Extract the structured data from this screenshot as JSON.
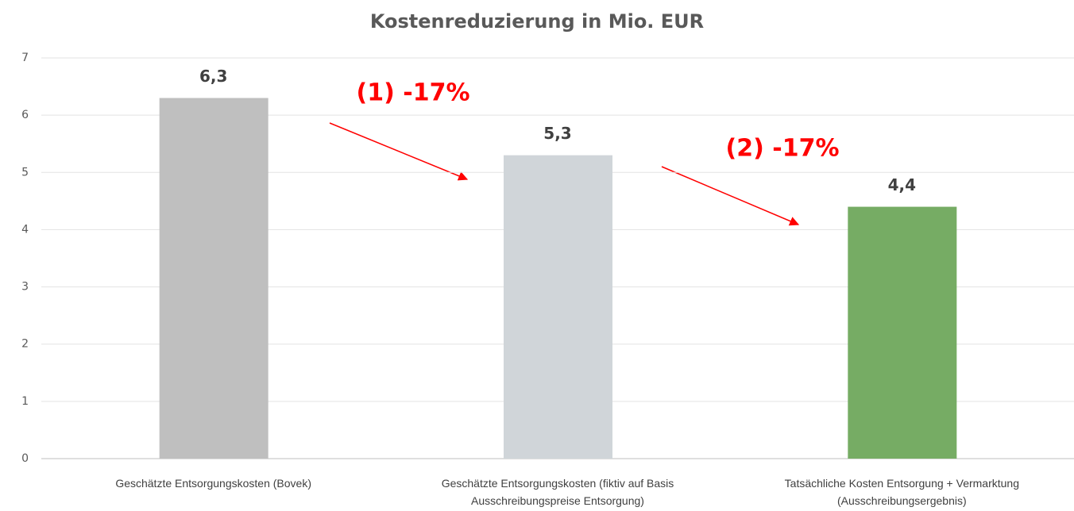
{
  "chart_data": {
    "type": "bar",
    "title": "Kostenreduzierung in Mio. EUR",
    "categories": [
      "Geschätzte Entsorgungskosten (Bovek)",
      "Geschätzte Entsorgungskosten (fiktiv auf Basis Ausschreibungspreise Entsorgung)",
      "Tatsächliche Kosten Entsorgung + Vermarktung (Ausschreibungsergebnis)"
    ],
    "values": [
      6.3,
      5.3,
      4.4
    ],
    "value_labels": [
      "6,3",
      "5,3",
      "4,4"
    ],
    "colors": [
      "#bfbfbf",
      "#d0d5d9",
      "#76ac64"
    ],
    "annotations": [
      "(1) -17%",
      "(2) -17%"
    ],
    "ylim": [
      0,
      7
    ],
    "yticks": [
      0,
      1,
      2,
      3,
      4,
      5,
      6,
      7
    ],
    "grid": true
  }
}
